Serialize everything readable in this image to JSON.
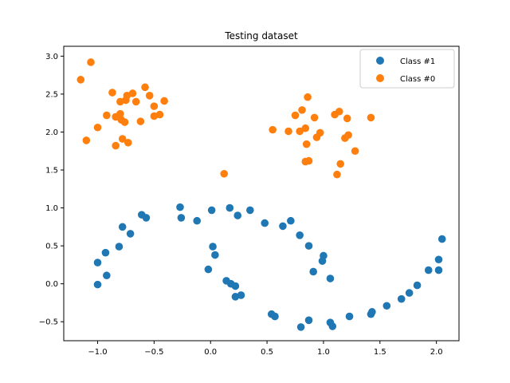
{
  "chart_data": {
    "type": "scatter",
    "title": "Testing dataset",
    "xlabel": "",
    "ylabel": "",
    "xlim": [
      -1.3,
      2.2
    ],
    "ylim": [
      -0.75,
      3.13
    ],
    "xticks": [
      -1.0,
      -0.5,
      0.0,
      0.5,
      1.0,
      1.5,
      2.0
    ],
    "xtick_labels": [
      "−1.0",
      "−0.5",
      "0.0",
      "0.5",
      "1.0",
      "1.5",
      "2.0"
    ],
    "yticks": [
      -0.5,
      0.0,
      0.5,
      1.0,
      1.5,
      2.0,
      2.5,
      3.0
    ],
    "ytick_labels": [
      "−0.5",
      "0.0",
      "0.5",
      "1.0",
      "1.5",
      "2.0",
      "2.5",
      "3.0"
    ],
    "grid": false,
    "legend_position": "upper-right",
    "series": [
      {
        "name": "Class #1",
        "color": "#1f77b4",
        "points": [
          [
            -0.27,
            1.01
          ],
          [
            -0.26,
            0.87
          ],
          [
            -0.12,
            0.83
          ],
          [
            0.01,
            0.97
          ],
          [
            0.17,
            1.0
          ],
          [
            0.24,
            0.9
          ],
          [
            0.35,
            0.97
          ],
          [
            0.48,
            0.8
          ],
          [
            0.64,
            0.76
          ],
          [
            0.71,
            0.83
          ],
          [
            0.79,
            0.64
          ],
          [
            0.87,
            0.5
          ],
          [
            0.99,
            0.3
          ],
          [
            1.0,
            0.37
          ],
          [
            0.91,
            0.16
          ],
          [
            1.06,
            0.07
          ],
          [
            -0.02,
            0.19
          ],
          [
            0.02,
            0.49
          ],
          [
            0.04,
            0.38
          ],
          [
            0.14,
            0.04
          ],
          [
            0.18,
            0.0
          ],
          [
            0.22,
            -0.03
          ],
          [
            0.22,
            -0.17
          ],
          [
            0.27,
            -0.15
          ],
          [
            -1.0,
            0.28
          ],
          [
            -1.0,
            -0.01
          ],
          [
            -0.93,
            0.41
          ],
          [
            -0.92,
            0.11
          ],
          [
            -0.81,
            0.49
          ],
          [
            -0.78,
            0.75
          ],
          [
            -0.71,
            0.66
          ],
          [
            -0.61,
            0.91
          ],
          [
            -0.57,
            0.87
          ],
          [
            0.54,
            -0.4
          ],
          [
            0.57,
            -0.43
          ],
          [
            0.8,
            -0.57
          ],
          [
            0.87,
            -0.48
          ],
          [
            1.06,
            -0.51
          ],
          [
            1.08,
            -0.56
          ],
          [
            1.23,
            -0.43
          ],
          [
            1.42,
            -0.4
          ],
          [
            1.43,
            -0.37
          ],
          [
            1.56,
            -0.29
          ],
          [
            1.69,
            -0.2
          ],
          [
            1.76,
            -0.12
          ],
          [
            1.83,
            -0.02
          ],
          [
            1.93,
            0.18
          ],
          [
            2.02,
            0.18
          ],
          [
            2.02,
            0.32
          ],
          [
            2.05,
            0.59
          ]
        ]
      },
      {
        "name": "Class #0",
        "color": "#ff7f0e",
        "points": [
          [
            -1.15,
            2.69
          ],
          [
            -1.06,
            2.92
          ],
          [
            -1.1,
            1.89
          ],
          [
            -1.0,
            2.06
          ],
          [
            -0.92,
            2.22
          ],
          [
            -0.87,
            2.52
          ],
          [
            -0.84,
            2.2
          ],
          [
            -0.84,
            1.82
          ],
          [
            -0.8,
            2.4
          ],
          [
            -0.8,
            2.24
          ],
          [
            -0.79,
            2.16
          ],
          [
            -0.78,
            1.91
          ],
          [
            -0.76,
            2.13
          ],
          [
            -0.75,
            2.42
          ],
          [
            -0.74,
            2.48
          ],
          [
            -0.73,
            1.86
          ],
          [
            -0.69,
            2.51
          ],
          [
            -0.66,
            2.4
          ],
          [
            -0.62,
            2.14
          ],
          [
            -0.58,
            2.59
          ],
          [
            -0.54,
            2.48
          ],
          [
            -0.5,
            2.34
          ],
          [
            -0.5,
            2.21
          ],
          [
            -0.45,
            2.23
          ],
          [
            -0.41,
            2.41
          ],
          [
            0.12,
            1.45
          ],
          [
            0.55,
            2.03
          ],
          [
            0.69,
            2.01
          ],
          [
            0.75,
            2.22
          ],
          [
            0.79,
            2.01
          ],
          [
            0.81,
            2.29
          ],
          [
            0.84,
            2.05
          ],
          [
            0.84,
            1.61
          ],
          [
            0.85,
            1.84
          ],
          [
            0.86,
            2.46
          ],
          [
            0.87,
            1.62
          ],
          [
            0.92,
            2.19
          ],
          [
            0.94,
            1.93
          ],
          [
            0.97,
            1.99
          ],
          [
            1.1,
            2.23
          ],
          [
            1.12,
            1.44
          ],
          [
            1.14,
            2.27
          ],
          [
            1.15,
            1.58
          ],
          [
            1.19,
            1.92
          ],
          [
            1.21,
            2.18
          ],
          [
            1.22,
            1.96
          ],
          [
            1.28,
            1.75
          ],
          [
            1.42,
            2.19
          ]
        ]
      }
    ]
  }
}
